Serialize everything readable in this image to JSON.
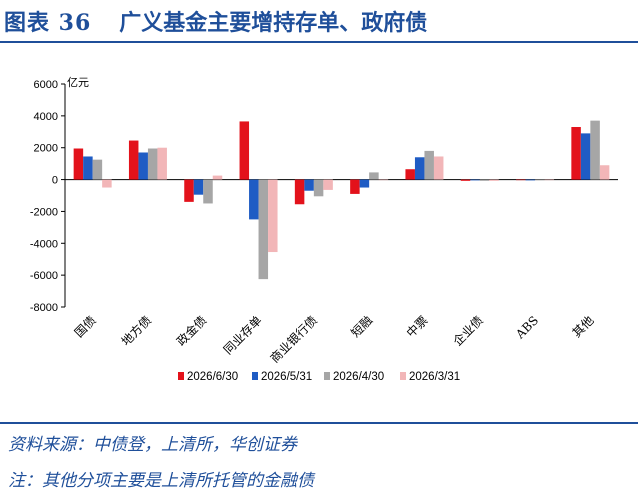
{
  "header": {
    "figure_label": "图表 36",
    "title": "广义基金主要增持存单、政府债"
  },
  "notes": {
    "source": "资料来源：中债登，上清所，华创证券",
    "note": "注：其他分项主要是上清所托管的金融债"
  },
  "chart_data": {
    "type": "bar",
    "unit_label": "亿元",
    "categories": [
      "国债",
      "地方债",
      "政金债",
      "同业存单",
      "商业银行债",
      "短融",
      "中票",
      "企业债",
      "ABS",
      "其他"
    ],
    "series": [
      {
        "name": "2026/6/30",
        "color": "#e3121b",
        "values": [
          1950,
          2450,
          -1400,
          3650,
          -1550,
          -900,
          650,
          -80,
          0,
          3300
        ]
      },
      {
        "name": "2026/5/31",
        "color": "#1f5cc4",
        "values": [
          1450,
          1700,
          -950,
          -2500,
          -700,
          -500,
          1400,
          -50,
          -50,
          2900
        ]
      },
      {
        "name": "2026/4/30",
        "color": "#a6a6a6",
        "values": [
          1250,
          1950,
          -1500,
          -6250,
          -1050,
          450,
          1800,
          -80,
          0,
          3700
        ]
      },
      {
        "name": "2026/3/31",
        "color": "#f2b6b8",
        "values": [
          -500,
          2000,
          250,
          -4550,
          -650,
          0,
          1450,
          -80,
          0,
          900
        ]
      }
    ],
    "ylim": [
      -8000,
      6000
    ],
    "yticks": [
      "6000",
      "4000",
      "2000",
      "0",
      "-2000",
      "-4000",
      "-6000",
      "-8000"
    ],
    "ytick_values": [
      6000,
      4000,
      2000,
      0,
      -2000,
      -4000,
      -6000,
      -8000
    ],
    "legend_position": "bottom",
    "grid": false
  }
}
